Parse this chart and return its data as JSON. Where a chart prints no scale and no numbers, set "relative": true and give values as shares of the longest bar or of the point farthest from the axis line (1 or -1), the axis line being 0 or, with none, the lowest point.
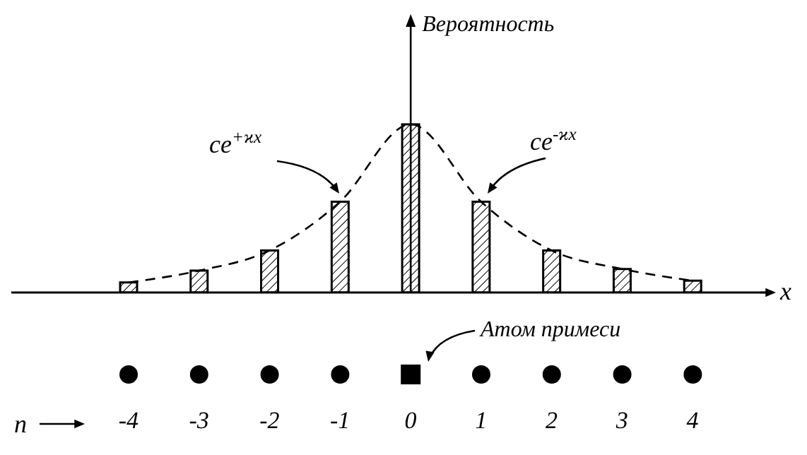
{
  "chart_data": {
    "type": "bar",
    "relative": true,
    "xlabel": "x",
    "ylabel": "Вероятность",
    "categories": [
      "-4",
      "-3",
      "-2",
      "-1",
      "0",
      "1",
      "2",
      "3",
      "4"
    ],
    "series": [
      {
        "color": "#000000",
        "values": [
          0.06,
          0.13,
          0.25,
          0.54,
          1,
          0.54,
          0.25,
          0.14,
          0.07
        ]
      },
      {
        "type": "line",
        "color": "#000000",
        "line_style": "dashed",
        "marker": "none",
        "values": [
          0.06,
          0.13,
          0.25,
          0.54,
          1,
          0.54,
          0.25,
          0.14,
          0.07
        ]
      }
    ],
    "annotations": [
      "ce$^{+ϰx}$",
      "ce$^{-ϰx}$",
      "Атом примеси",
      "n"
    ]
  }
}
